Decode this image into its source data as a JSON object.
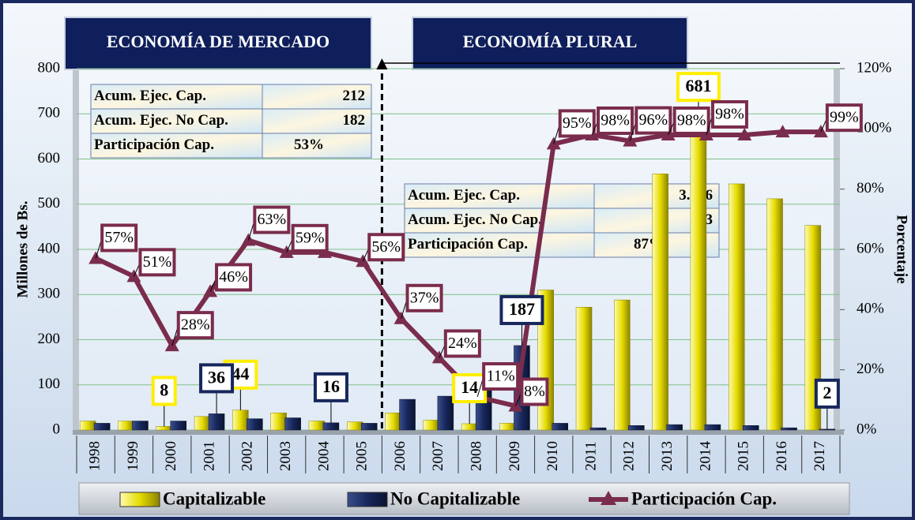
{
  "chart_data": {
    "type": "bar-line",
    "headers": [
      "ECONOMÍA DE MERCADO",
      "ECONOMÍA PLURAL"
    ],
    "ylabel": "Millones de Bs.",
    "y2label": "Porcentaje",
    "categories": [
      "1998",
      "1999",
      "2000",
      "2001",
      "2002",
      "2003",
      "2004",
      "2005",
      "2006",
      "2007",
      "2008",
      "2009",
      "2010",
      "2011",
      "2012",
      "2013",
      "2014",
      "2015",
      "2016",
      "2017"
    ],
    "series": [
      {
        "name": "Capitalizable",
        "type": "bar",
        "color": "#e6dc00",
        "values": [
          20,
          20,
          8,
          30,
          44,
          38,
          20,
          18,
          38,
          22,
          14,
          15,
          310,
          272,
          288,
          567,
          681,
          545,
          512,
          453
        ],
        "value_labels": [
          null,
          null,
          "8",
          null,
          "44",
          null,
          null,
          null,
          null,
          null,
          "14",
          null,
          null,
          null,
          null,
          null,
          "681",
          null,
          null,
          null
        ]
      },
      {
        "name": "No Capitalizable",
        "type": "bar",
        "color": "#17275c",
        "values": [
          15,
          20,
          20,
          36,
          25,
          27,
          16,
          15,
          68,
          75,
          120,
          187,
          15,
          5,
          10,
          12,
          12,
          10,
          5,
          2
        ],
        "value_labels": [
          null,
          null,
          null,
          "36",
          null,
          null,
          "16",
          null,
          null,
          null,
          null,
          "187",
          null,
          null,
          null,
          null,
          null,
          null,
          null,
          "2"
        ]
      },
      {
        "name": "Participación Cap.",
        "type": "line",
        "axis": "y2",
        "color": "#7a2c4c",
        "values": [
          57,
          51,
          28,
          46,
          63,
          59,
          59,
          56,
          37,
          24,
          11,
          8,
          95,
          98,
          96,
          98,
          98,
          98,
          99,
          99
        ],
        "value_labels": [
          "57%",
          "51%",
          "28%",
          "46%",
          "63%",
          "59%",
          null,
          "56%",
          "37%",
          "24%",
          "11%",
          "8%",
          "95%",
          "98%",
          "96%",
          "98%",
          "98%",
          null,
          null,
          "99%"
        ]
      }
    ],
    "ylim": [
      0,
      800
    ],
    "yticks": [
      0,
      100,
      200,
      300,
      400,
      500,
      600,
      700,
      800
    ],
    "y2lim": [
      0,
      120
    ],
    "y2ticks": [
      {
        "value": 0,
        "label": "0%"
      },
      {
        "value": 20,
        "label": "20%"
      },
      {
        "value": 40,
        "label": "40%"
      },
      {
        "value": 60,
        "label": "60%"
      },
      {
        "value": 80,
        "label": "80%"
      },
      {
        "value": 100,
        "label": "100%"
      },
      {
        "value": 120,
        "label": "120%"
      }
    ],
    "grid": true,
    "legend": "bottom",
    "tables": [
      {
        "rows": [
          [
            "Acum. Ejec. Cap.",
            "212"
          ],
          [
            "Acum. Ejec. No Cap.",
            "182"
          ],
          [
            "Participación Cap.",
            "53%"
          ]
        ]
      },
      {
        "rows": [
          [
            "Acum. Ejec. Cap.",
            "3.726"
          ],
          [
            "Acum. Ejec. No Cap.",
            "563"
          ],
          [
            "Participación Cap.",
            "87%"
          ]
        ]
      }
    ]
  }
}
